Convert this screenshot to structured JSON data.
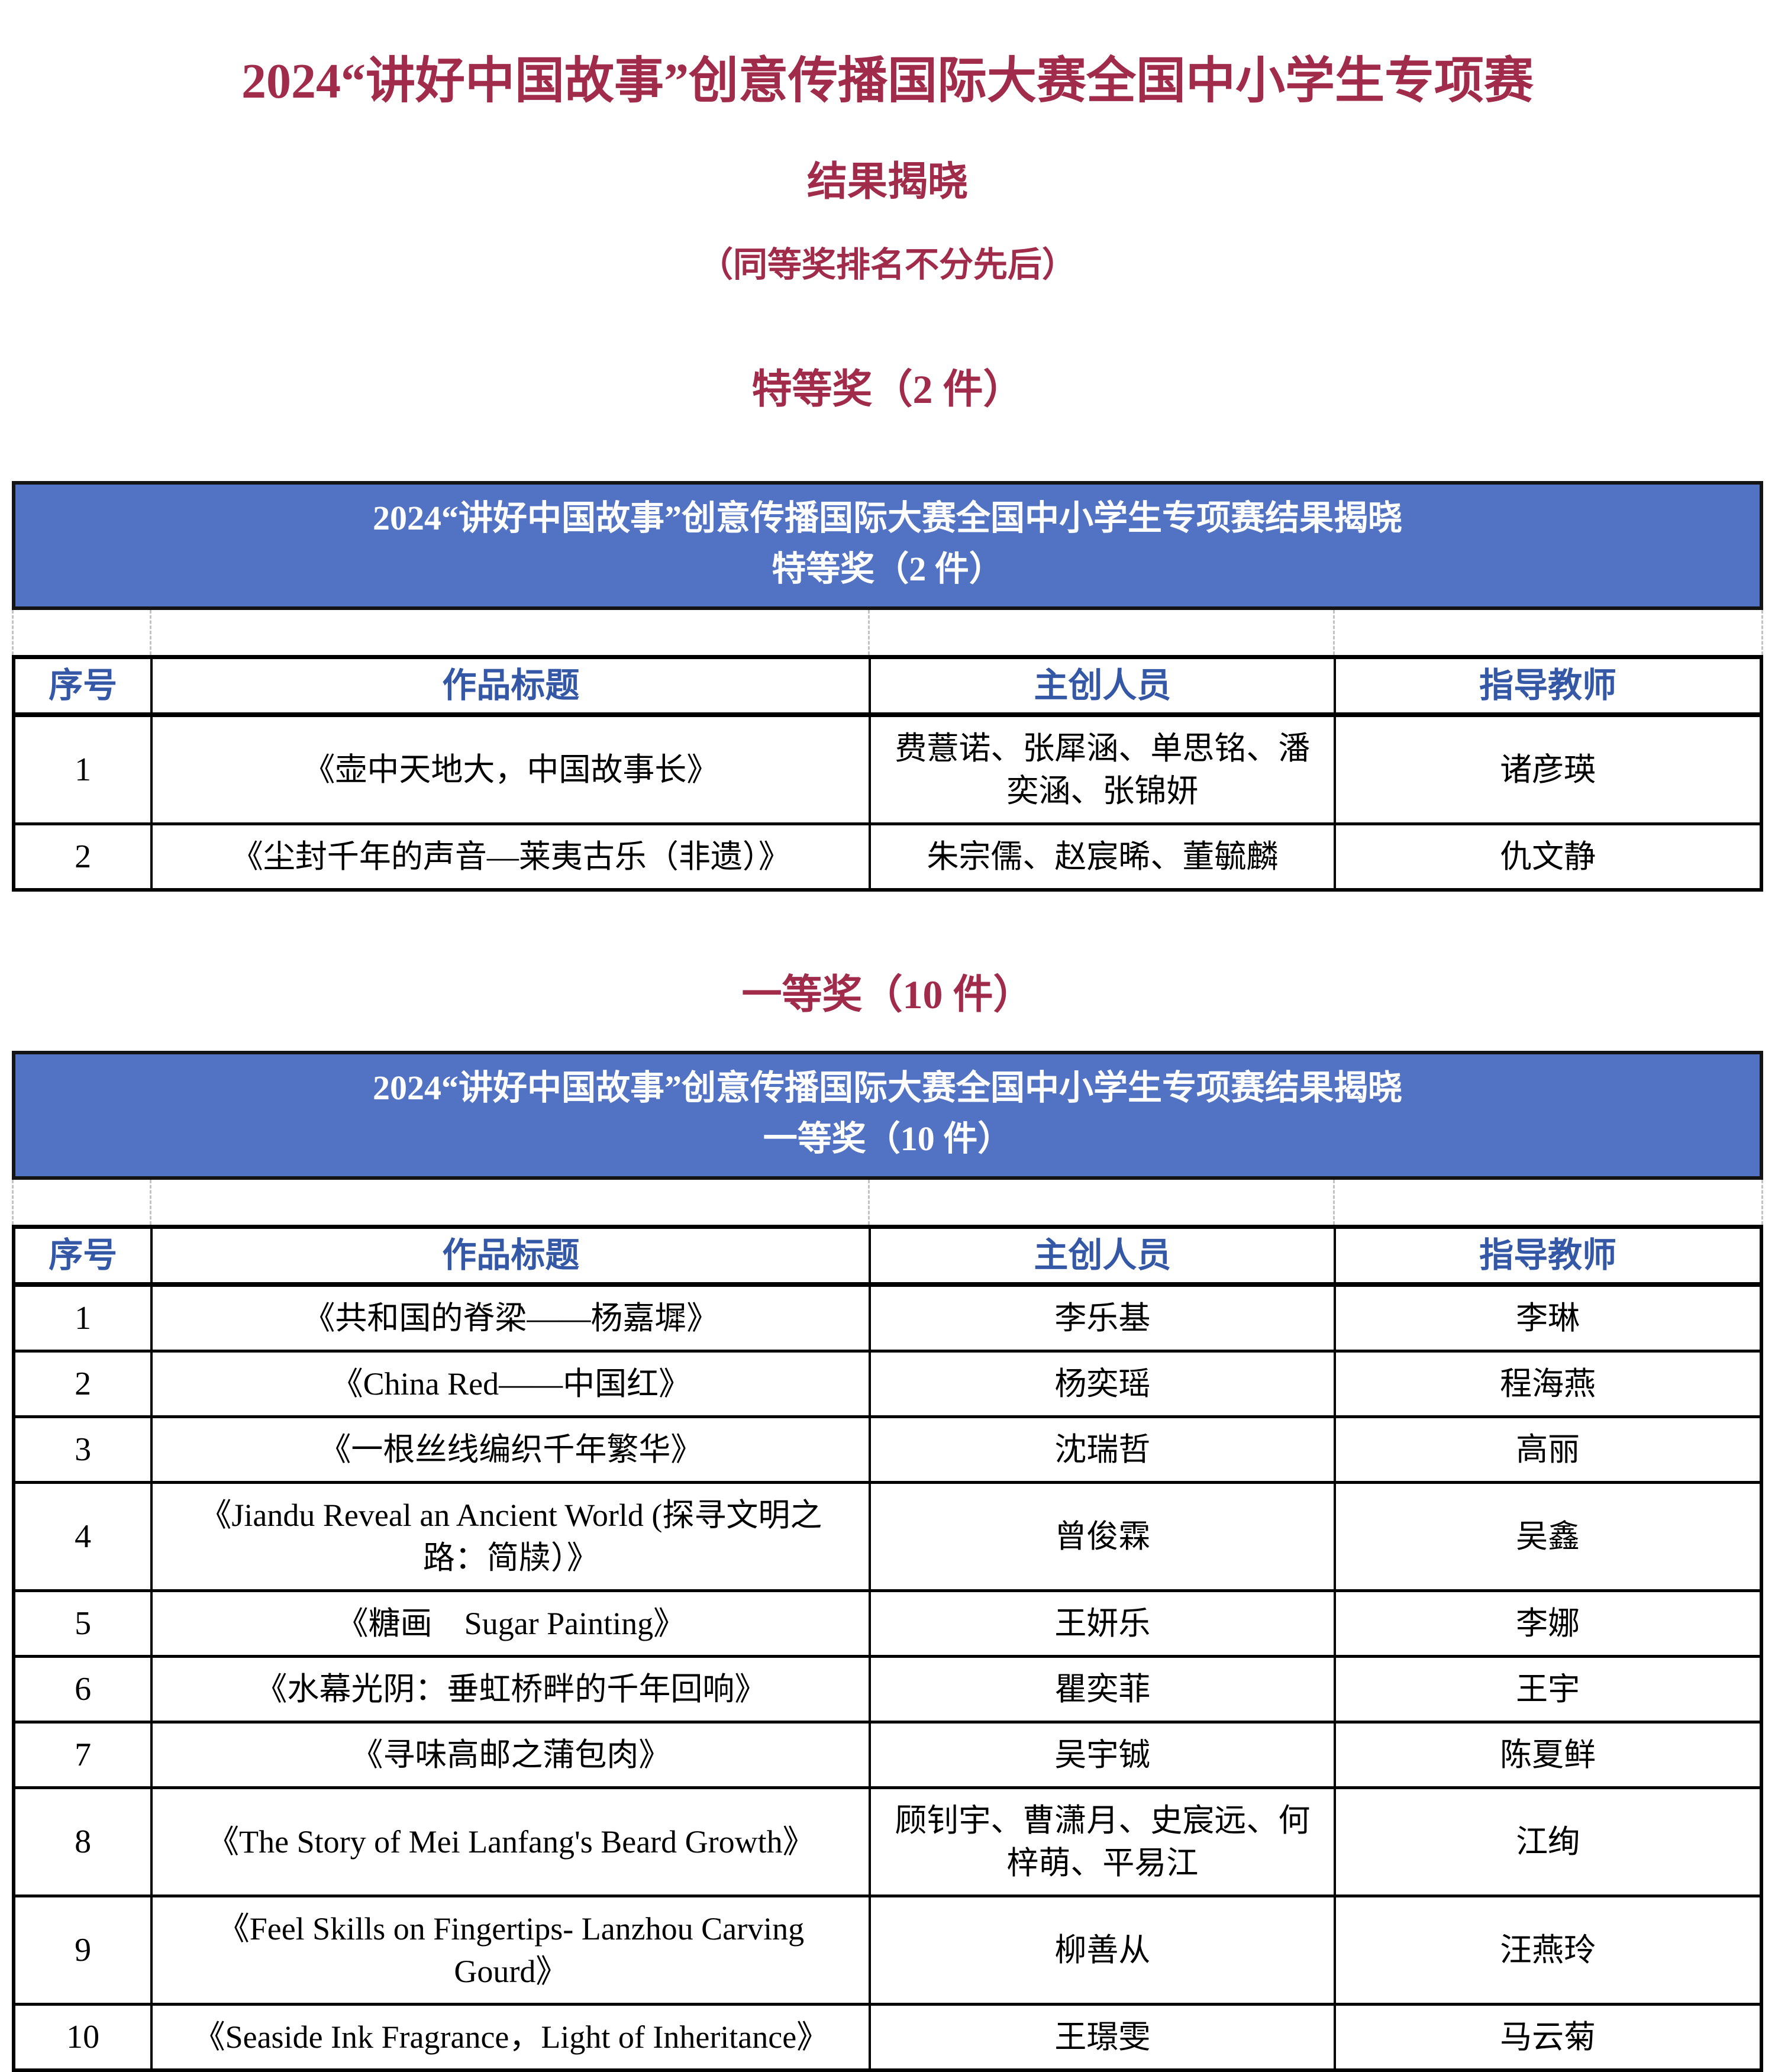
{
  "page": {
    "title": "2024“讲好中国故事”创意传播国际大赛全国中小学生专项赛",
    "subtitle": "结果揭晓",
    "note": "（同等奖排名不分先后）"
  },
  "colors": {
    "accent_red": "#A02B4A",
    "banner_blue": "#5273C4",
    "header_text_blue": "#3558A6",
    "table_border": "#000000",
    "banner_text": "#FFFFFF"
  },
  "columns": {
    "no": "序号",
    "title": "作品标题",
    "creators": "主创人员",
    "teacher": "指导教师"
  },
  "sections": [
    {
      "heading": "特等奖（2 件）",
      "banner_line1": "2024“讲好中国故事”创意传播国际大赛全国中小学生专项赛结果揭晓",
      "banner_line2": "特等奖（2 件）",
      "rows": [
        {
          "no": "1",
          "title": "《壶中天地大，中国故事长》",
          "creators": "费薏诺、张犀涵、单思铭、潘奕涵、张锦妍",
          "teacher": "诸彦瑛"
        },
        {
          "no": "2",
          "title": "《尘封千年的声音—莱夷古乐（非遗）》",
          "creators": "朱宗儒、赵宸晞、董毓麟",
          "teacher": "仇文静"
        }
      ]
    },
    {
      "heading": "一等奖（10 件）",
      "banner_line1": "2024“讲好中国故事”创意传播国际大赛全国中小学生专项赛结果揭晓",
      "banner_line2": "一等奖（10 件）",
      "rows": [
        {
          "no": "1",
          "title": "《共和国的脊梁——杨嘉墀》",
          "creators": "李乐基",
          "teacher": "李琳"
        },
        {
          "no": "2",
          "title": "《China Red——中国红》",
          "creators": "杨奕瑶",
          "teacher": "程海燕"
        },
        {
          "no": "3",
          "title": "《一根丝线编织千年繁华》",
          "creators": "沈瑞哲",
          "teacher": "高丽"
        },
        {
          "no": "4",
          "title": "《Jiandu Reveal an Ancient World (探寻文明之路：简牍）》",
          "creators": "曾俊霖",
          "teacher": "吴鑫"
        },
        {
          "no": "5",
          "title": "《糖画　Sugar Painting》",
          "creators": "王妍乐",
          "teacher": "李娜"
        },
        {
          "no": "6",
          "title": "《水幕光阴：垂虹桥畔的千年回响》",
          "creators": "瞿奕菲",
          "teacher": "王宇"
        },
        {
          "no": "7",
          "title": "《寻味高邮之蒲包肉》",
          "creators": "吴宇铖",
          "teacher": "陈夏鲜"
        },
        {
          "no": "8",
          "title": "《The Story of Mei Lanfang's Beard Growth》",
          "creators": "顾钊宇、曹潇月、史宸远、何梓萌、平易江",
          "teacher": "江绚"
        },
        {
          "no": "9",
          "title": "《Feel Skills on Fingertips- Lanzhou Carving Gourd》",
          "creators": "柳善从",
          "teacher": "汪燕玲"
        },
        {
          "no": "10",
          "title": "《Seaside Ink Fragrance，Light of Inheritance》",
          "creators": "王璟雯",
          "teacher": "马云菊"
        }
      ]
    }
  ]
}
